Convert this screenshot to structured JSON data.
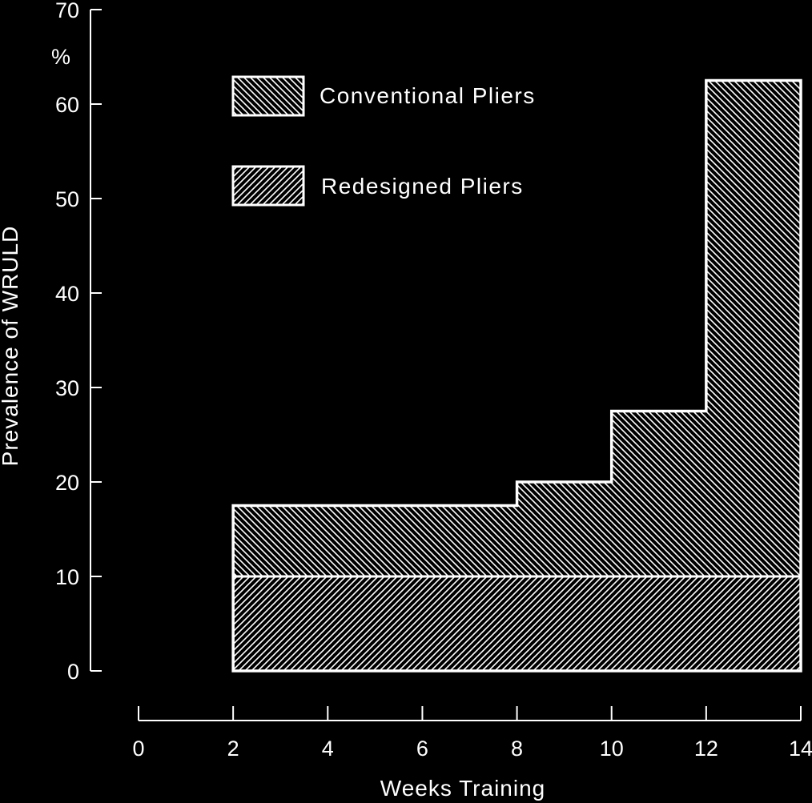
{
  "chart_data": {
    "type": "area",
    "step": true,
    "x_unit_label": "Weeks Training",
    "y_unit_label": "%",
    "xlabel": "Weeks Training",
    "ylabel": "Prevalence of WRULD",
    "xlim": [
      0,
      14
    ],
    "ylim": [
      0,
      70
    ],
    "x_ticks": [
      0,
      2,
      4,
      6,
      8,
      10,
      12,
      14
    ],
    "y_ticks": [
      0,
      10,
      20,
      30,
      40,
      50,
      60,
      70
    ],
    "grid": false,
    "legend_position": "top-center",
    "colors": {
      "background": "#000000",
      "foreground": "#ffffff"
    },
    "series": [
      {
        "name": "Conventional Pliers",
        "pattern": "hatch-backslash",
        "segments": [
          {
            "x_start": 2,
            "x_end": 8,
            "value": 17.5
          },
          {
            "x_start": 8,
            "x_end": 10,
            "value": 20
          },
          {
            "x_start": 10,
            "x_end": 12,
            "value": 27.5
          },
          {
            "x_start": 12,
            "x_end": 14,
            "value": 62.5
          }
        ]
      },
      {
        "name": "Redesigned Pliers",
        "pattern": "hatch-slash",
        "segments": [
          {
            "x_start": 2,
            "x_end": 14,
            "value": 10
          }
        ]
      }
    ]
  }
}
